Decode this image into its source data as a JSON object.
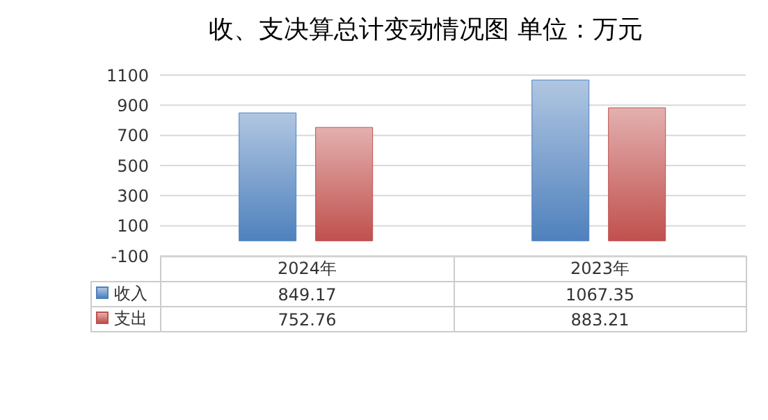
{
  "chart_data": {
    "type": "bar",
    "title": "收、支决算总计变动情况图 单位：万元",
    "categories": [
      "2024年",
      "2023年"
    ],
    "series": [
      {
        "name": "收入",
        "color": "#4f81bd",
        "values": [
          849.17,
          1067.35
        ]
      },
      {
        "name": "支出",
        "color": "#c0504d",
        "values": [
          752.76,
          883.21
        ]
      }
    ],
    "ylim": [
      -100,
      1100
    ],
    "yticks": [
      -100,
      100,
      300,
      500,
      700,
      900,
      1100
    ],
    "grid": "y",
    "legend": "bottom",
    "data_labels": true
  }
}
